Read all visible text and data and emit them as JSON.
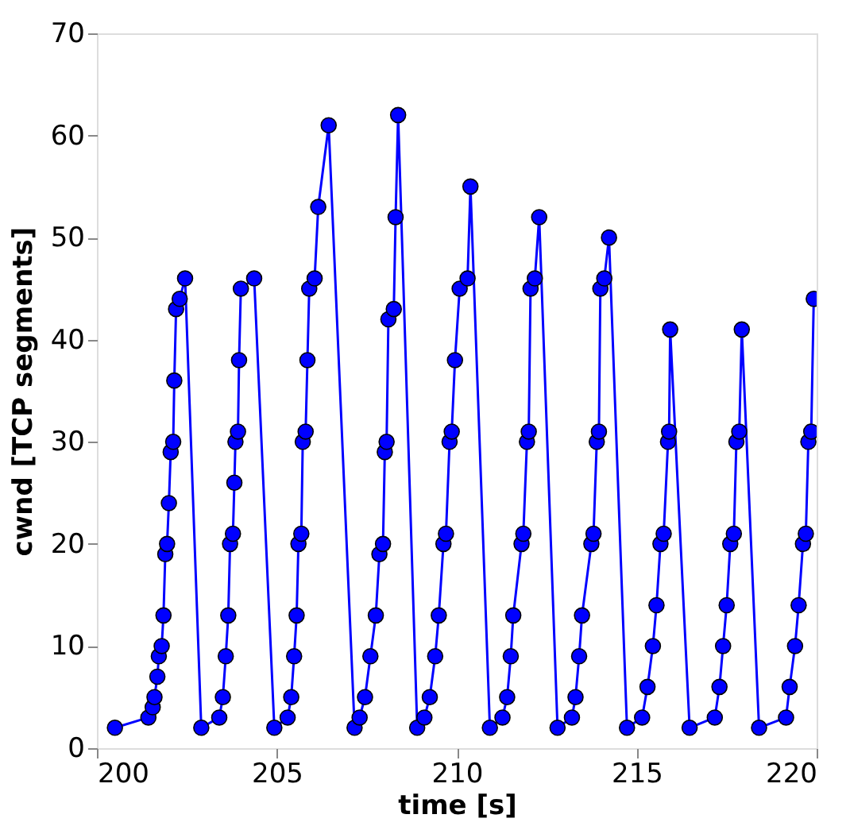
{
  "chart_data": {
    "type": "line",
    "xlabel": "time [s]",
    "ylabel": "cwnd [TCP segments]",
    "xlim": [
      200,
      220
    ],
    "xticks": [
      200,
      205,
      210,
      215,
      220
    ],
    "ylim": [
      0,
      70
    ],
    "yticks": [
      0,
      10,
      20,
      30,
      40,
      50,
      60,
      70
    ],
    "grid": false,
    "legend": false,
    "marker": "circle",
    "line_style": "solid",
    "series": [
      {
        "color": "#0000ff",
        "x": [
          200.5,
          201.43,
          201.55,
          201.6,
          201.68,
          201.72,
          201.8,
          201.85,
          201.9,
          201.95,
          202.0,
          202.05,
          202.12,
          202.15,
          202.2,
          202.3,
          202.45,
          202.9,
          203.4,
          203.5,
          203.58,
          203.65,
          203.7,
          203.78,
          203.82,
          203.85,
          203.92,
          203.95,
          204.0,
          204.37,
          204.93,
          205.3,
          205.4,
          205.48,
          205.55,
          205.6,
          205.68,
          205.72,
          205.8,
          205.85,
          205.9,
          206.05,
          206.15,
          206.44,
          207.16,
          207.3,
          207.45,
          207.6,
          207.75,
          207.85,
          207.95,
          208.0,
          208.05,
          208.1,
          208.25,
          208.3,
          208.37,
          208.9,
          209.1,
          209.25,
          209.4,
          209.5,
          209.63,
          209.7,
          209.8,
          209.86,
          209.95,
          210.08,
          210.3,
          210.38,
          210.92,
          211.27,
          211.4,
          211.5,
          211.57,
          211.8,
          211.85,
          211.95,
          212.0,
          212.05,
          212.17,
          212.29,
          212.8,
          213.2,
          213.3,
          213.4,
          213.48,
          213.74,
          213.8,
          213.89,
          213.95,
          213.99,
          214.1,
          214.23,
          214.73,
          215.15,
          215.3,
          215.45,
          215.55,
          215.66,
          215.75,
          215.87,
          215.9,
          215.93,
          216.47,
          217.17,
          217.3,
          217.4,
          217.5,
          217.6,
          217.7,
          217.77,
          217.85,
          217.92,
          218.4,
          219.15,
          219.25,
          219.4,
          219.5,
          219.62,
          219.7,
          219.77,
          219.85,
          219.92
        ],
        "values": [
          2,
          3,
          4,
          5,
          7,
          9,
          10,
          13,
          19,
          20,
          24,
          29,
          30,
          36,
          43,
          44,
          46,
          2,
          3,
          5,
          9,
          13,
          20,
          21,
          26,
          30,
          31,
          38,
          45,
          46,
          2,
          3,
          5,
          9,
          13,
          20,
          21,
          30,
          31,
          38,
          45,
          46,
          53,
          61,
          2,
          3,
          5,
          9,
          13,
          19,
          20,
          29,
          30,
          42,
          43,
          52,
          62,
          2,
          3,
          5,
          9,
          13,
          20,
          21,
          30,
          31,
          38,
          45,
          46,
          55,
          2,
          3,
          5,
          9,
          13,
          20,
          21,
          30,
          31,
          45,
          46,
          52,
          2,
          3,
          5,
          9,
          13,
          20,
          21,
          30,
          31,
          45,
          46,
          50,
          2,
          3,
          6,
          10,
          14,
          20,
          21,
          30,
          31,
          41,
          2,
          3,
          6,
          10,
          14,
          20,
          21,
          30,
          31,
          41,
          2,
          3,
          6,
          10,
          14,
          20,
          21,
          30,
          31,
          44
        ]
      }
    ]
  }
}
